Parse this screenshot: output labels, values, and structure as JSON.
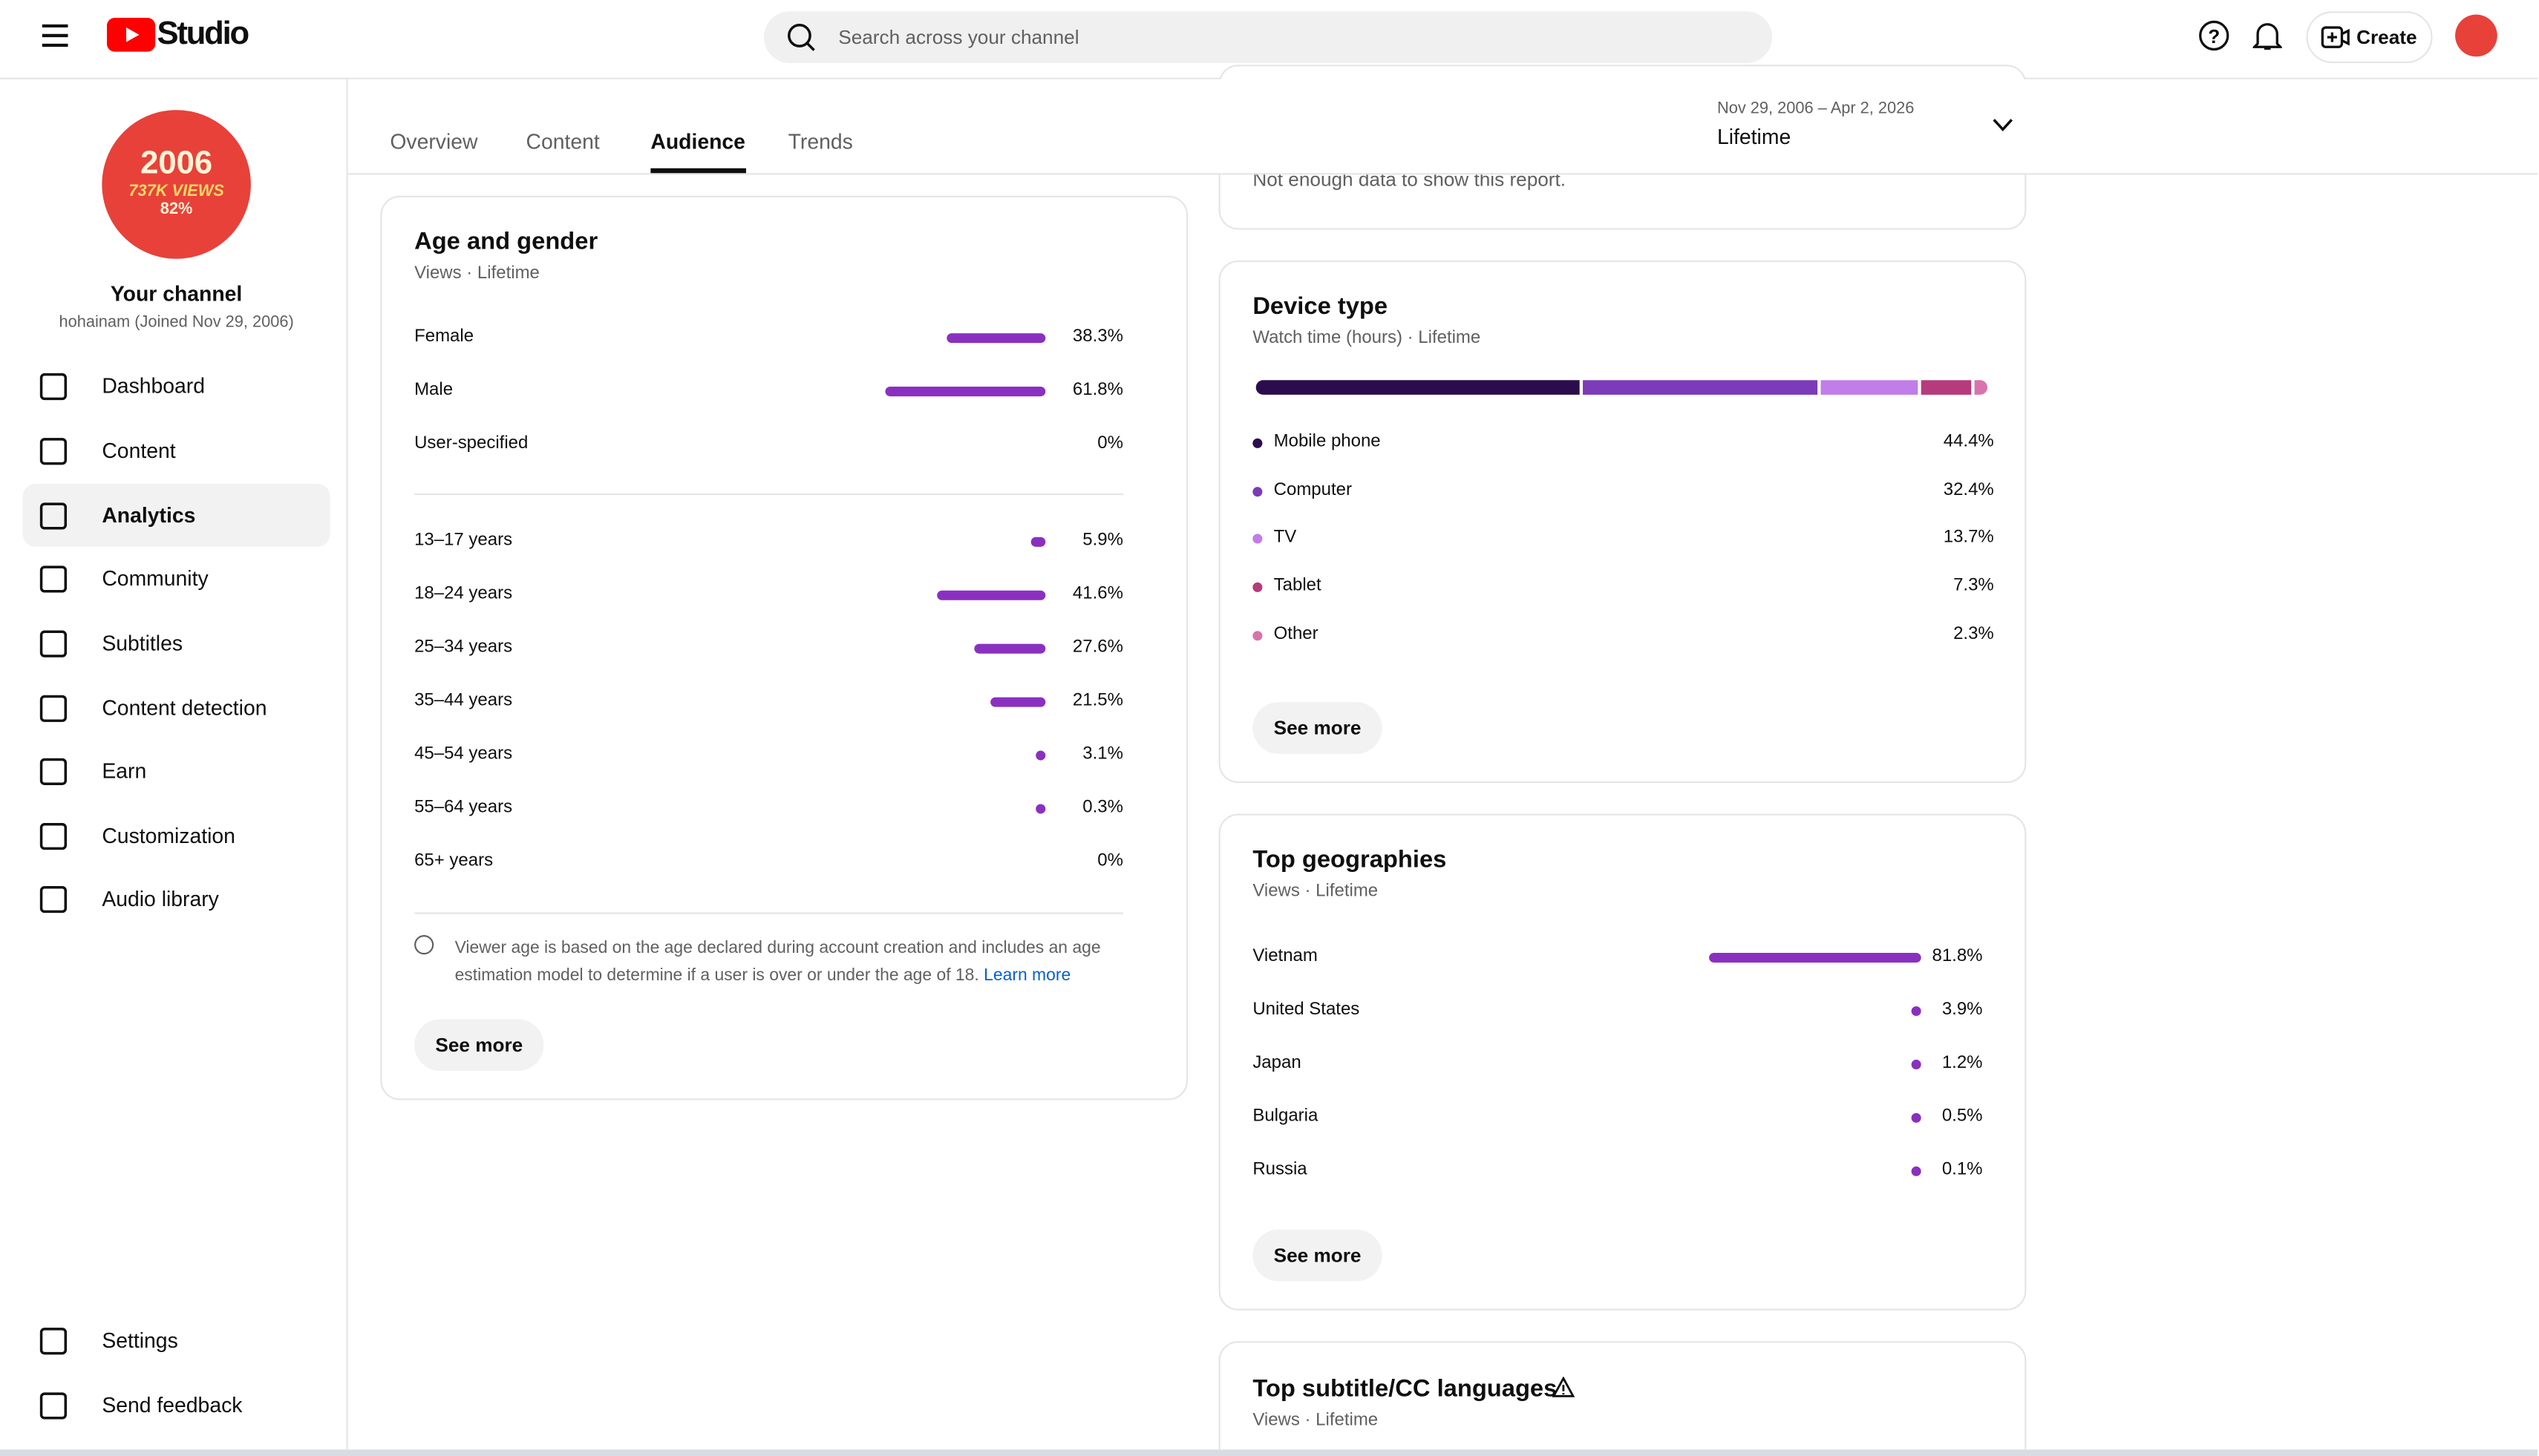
{
  "header": {
    "logo": "Studio",
    "search_placeholder": "Search across your channel",
    "create": "Create"
  },
  "sidebar": {
    "avatar_lines": [
      "2006",
      "737K VIEWS",
      "82%"
    ],
    "channel_title": "Your channel",
    "channel_subtitle": "hohainam (Joined Nov 29, 2006)",
    "nav": [
      "Dashboard",
      "Content",
      "Analytics",
      "Community",
      "Subtitles",
      "Content detection",
      "Earn",
      "Customization",
      "Audio library"
    ],
    "bottom_nav": [
      "Settings",
      "Send feedback"
    ]
  },
  "tabs": [
    "Overview",
    "Content",
    "Audience",
    "Trends"
  ],
  "date_range": {
    "dates": "Nov 29, 2006 – Apr 2, 2026",
    "label": "Lifetime"
  },
  "top_card": {
    "message": "Not enough data to show this report."
  },
  "age_gender": {
    "title": "Age and gender",
    "subtitle": "Views · Lifetime",
    "gender": [
      {
        "label": "Female",
        "value": 38.3,
        "value_label": "38.3%"
      },
      {
        "label": "Male",
        "value": 61.8,
        "value_label": "61.8%"
      },
      {
        "label": "User-specified",
        "value": 0,
        "value_label": "0%"
      }
    ],
    "age": [
      {
        "label": "13–17 years",
        "value": 5.9,
        "value_label": "5.9%"
      },
      {
        "label": "18–24 years",
        "value": 41.6,
        "value_label": "41.6%"
      },
      {
        "label": "25–34 years",
        "value": 27.6,
        "value_label": "27.6%"
      },
      {
        "label": "35–44 years",
        "value": 21.5,
        "value_label": "21.5%"
      },
      {
        "label": "45–54 years",
        "value": 3.1,
        "value_label": "3.1%"
      },
      {
        "label": "55–64 years",
        "value": 0.3,
        "value_label": "0.3%"
      },
      {
        "label": "65+ years",
        "value": 0,
        "value_label": "0%"
      }
    ],
    "note": "Viewer age is based on the age declared during account creation and includes an age estimation model to determine if a user is over or under the age of 18.",
    "learn_more": "Learn more",
    "button": "See more"
  },
  "device_type": {
    "title": "Device type",
    "subtitle": "Watch time (hours) · Lifetime",
    "items": [
      {
        "label": "Mobile phone",
        "value": 44.4,
        "value_label": "44.4%",
        "color": "#2b0d4d"
      },
      {
        "label": "Computer",
        "value": 32.4,
        "value_label": "32.4%",
        "color": "#7c3bb8"
      },
      {
        "label": "TV",
        "value": 13.7,
        "value_label": "13.7%",
        "color": "#c17de8"
      },
      {
        "label": "Tablet",
        "value": 7.3,
        "value_label": "7.3%",
        "color": "#b63b7c"
      },
      {
        "label": "Other",
        "value": 2.3,
        "value_label": "2.3%",
        "color": "#d873ae"
      }
    ],
    "button": "See more"
  },
  "top_geographies": {
    "title": "Top geographies",
    "subtitle": "Views · Lifetime",
    "items": [
      {
        "label": "Vietnam",
        "value": 81.8,
        "value_label": "81.8%"
      },
      {
        "label": "United States",
        "value": 3.9,
        "value_label": "3.9%"
      },
      {
        "label": "Japan",
        "value": 1.2,
        "value_label": "1.2%"
      },
      {
        "label": "Bulgaria",
        "value": 0.5,
        "value_label": "0.5%"
      },
      {
        "label": "Russia",
        "value": 0.1,
        "value_label": "0.1%"
      }
    ],
    "button": "See more"
  },
  "subtitle_languages": {
    "title": "Top subtitle/CC languages",
    "subtitle": "Views · Lifetime"
  }
}
